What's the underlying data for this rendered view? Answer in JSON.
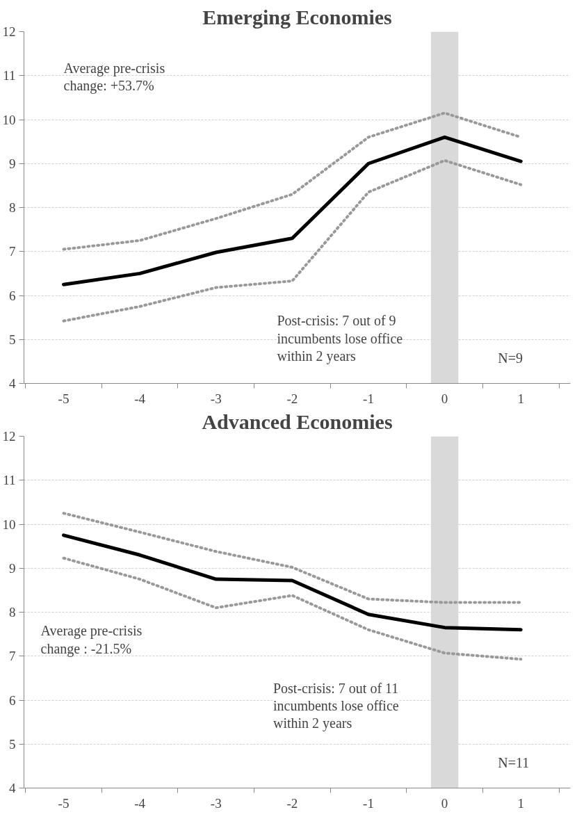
{
  "chart_data": [
    {
      "type": "line",
      "title": "Emerging Economies",
      "categories": [
        "-5",
        "-4",
        "-3",
        "-2",
        "-1",
        "0",
        "1"
      ],
      "series": [
        {
          "color": "#000000",
          "line_style": "solid",
          "values": [
            6.25,
            6.5,
            6.98,
            7.3,
            9.0,
            9.6,
            9.05
          ]
        },
        {
          "color": "#999999",
          "line_style": "dotted",
          "values": [
            7.05,
            7.25,
            7.75,
            8.3,
            9.6,
            10.15,
            9.6
          ]
        },
        {
          "color": "#999999",
          "line_style": "dotted",
          "values": [
            5.42,
            5.75,
            6.18,
            6.33,
            8.35,
            9.07,
            8.52
          ]
        }
      ],
      "ylim": [
        4,
        12
      ],
      "yticks": [
        4,
        5,
        6,
        7,
        8,
        9,
        10,
        11,
        12
      ],
      "grid": "y",
      "marker": "none",
      "bands": [
        {
          "axis": "x",
          "from": "0",
          "to": "0",
          "color": "#d9d9d9"
        }
      ],
      "annotations": [
        "Average pre-crisis\nchange: +53.7%",
        "Post-crisis: 7 out of 9\nincumbents lose office\nwithin 2 years",
        "N=9"
      ]
    },
    {
      "type": "line",
      "title": "Advanced Economies",
      "categories": [
        "-5",
        "-4",
        "-3",
        "-2",
        "-1",
        "0",
        "1"
      ],
      "series": [
        {
          "color": "#000000",
          "line_style": "solid",
          "values": [
            9.75,
            9.3,
            8.75,
            8.72,
            7.95,
            7.65,
            7.6
          ]
        },
        {
          "color": "#999999",
          "line_style": "dotted",
          "values": [
            10.25,
            9.82,
            9.38,
            9.02,
            8.3,
            8.22,
            8.22
          ]
        },
        {
          "color": "#999999",
          "line_style": "dotted",
          "values": [
            9.23,
            8.75,
            8.1,
            8.38,
            7.6,
            7.07,
            6.93
          ]
        }
      ],
      "ylim": [
        4,
        12
      ],
      "yticks": [
        4,
        5,
        6,
        7,
        8,
        9,
        10,
        11,
        12
      ],
      "grid": "y",
      "marker": "none",
      "bands": [
        {
          "axis": "x",
          "from": "0",
          "to": "0",
          "color": "#d9d9d9"
        }
      ],
      "annotations": [
        "Average pre-crisis\nchange : -21.5%",
        "Post-crisis: 7 out of 11\nincumbents lose office\nwithin 2 years",
        "N=11"
      ]
    }
  ]
}
